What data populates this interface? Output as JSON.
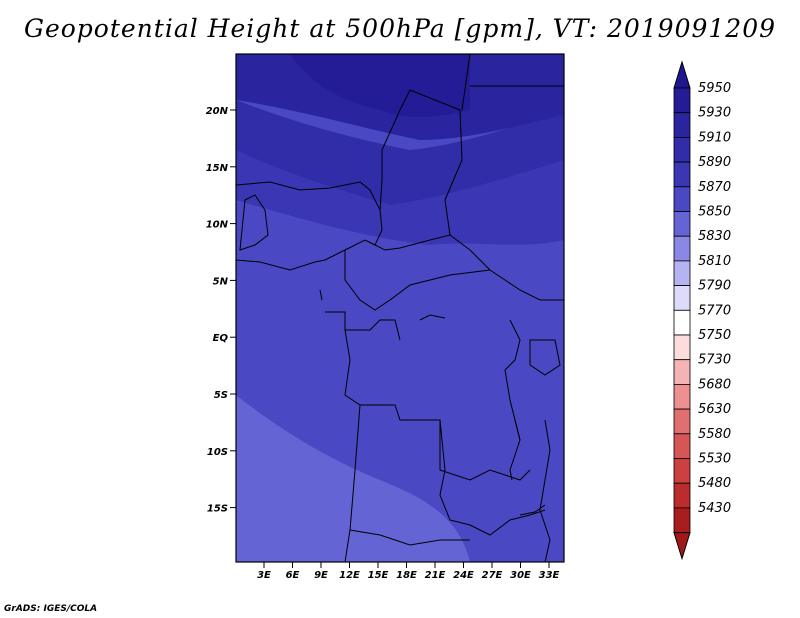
{
  "title": "Geopotential Height at 500hPa [gpm], VT: 2019091209",
  "credit": "GrADS: IGES/COLA",
  "map": {
    "lat_ticks": [
      "20N",
      "15N",
      "10N",
      "5N",
      "EQ",
      "5S",
      "10S",
      "15S"
    ],
    "lon_ticks": [
      "3E",
      "6E",
      "9E",
      "12E",
      "15E",
      "18E",
      "21E",
      "24E",
      "27E",
      "30E",
      "33E"
    ]
  },
  "colorbar": {
    "levels": [
      {
        "label": "5950",
        "color": "#241c96"
      },
      {
        "label": "5930",
        "color": "#2a249e"
      },
      {
        "label": "5910",
        "color": "#312ca8"
      },
      {
        "label": "5890",
        "color": "#3a36b4"
      },
      {
        "label": "5870",
        "color": "#4a48c2"
      },
      {
        "label": "5850",
        "color": "#6464d4"
      },
      {
        "label": "5830",
        "color": "#8a88e4"
      },
      {
        "label": "5810",
        "color": "#b6b4f0"
      },
      {
        "label": "5790",
        "color": "#dcdcfa"
      },
      {
        "label": "5770",
        "color": "#ffffff"
      },
      {
        "label": "5750",
        "color": "#fcdcdc"
      },
      {
        "label": "5730",
        "color": "#f4b4b4"
      },
      {
        "label": "5680",
        "color": "#ec9090"
      },
      {
        "label": "5630",
        "color": "#e07070"
      },
      {
        "label": "5580",
        "color": "#d65656"
      },
      {
        "label": "5530",
        "color": "#cc4040"
      },
      {
        "label": "5480",
        "color": "#bb2c2c"
      },
      {
        "label": "5430",
        "color": "#a81e1e"
      }
    ],
    "top_arrow_color": "#1e1890",
    "bottom_arrow_color": "#a01818"
  }
}
